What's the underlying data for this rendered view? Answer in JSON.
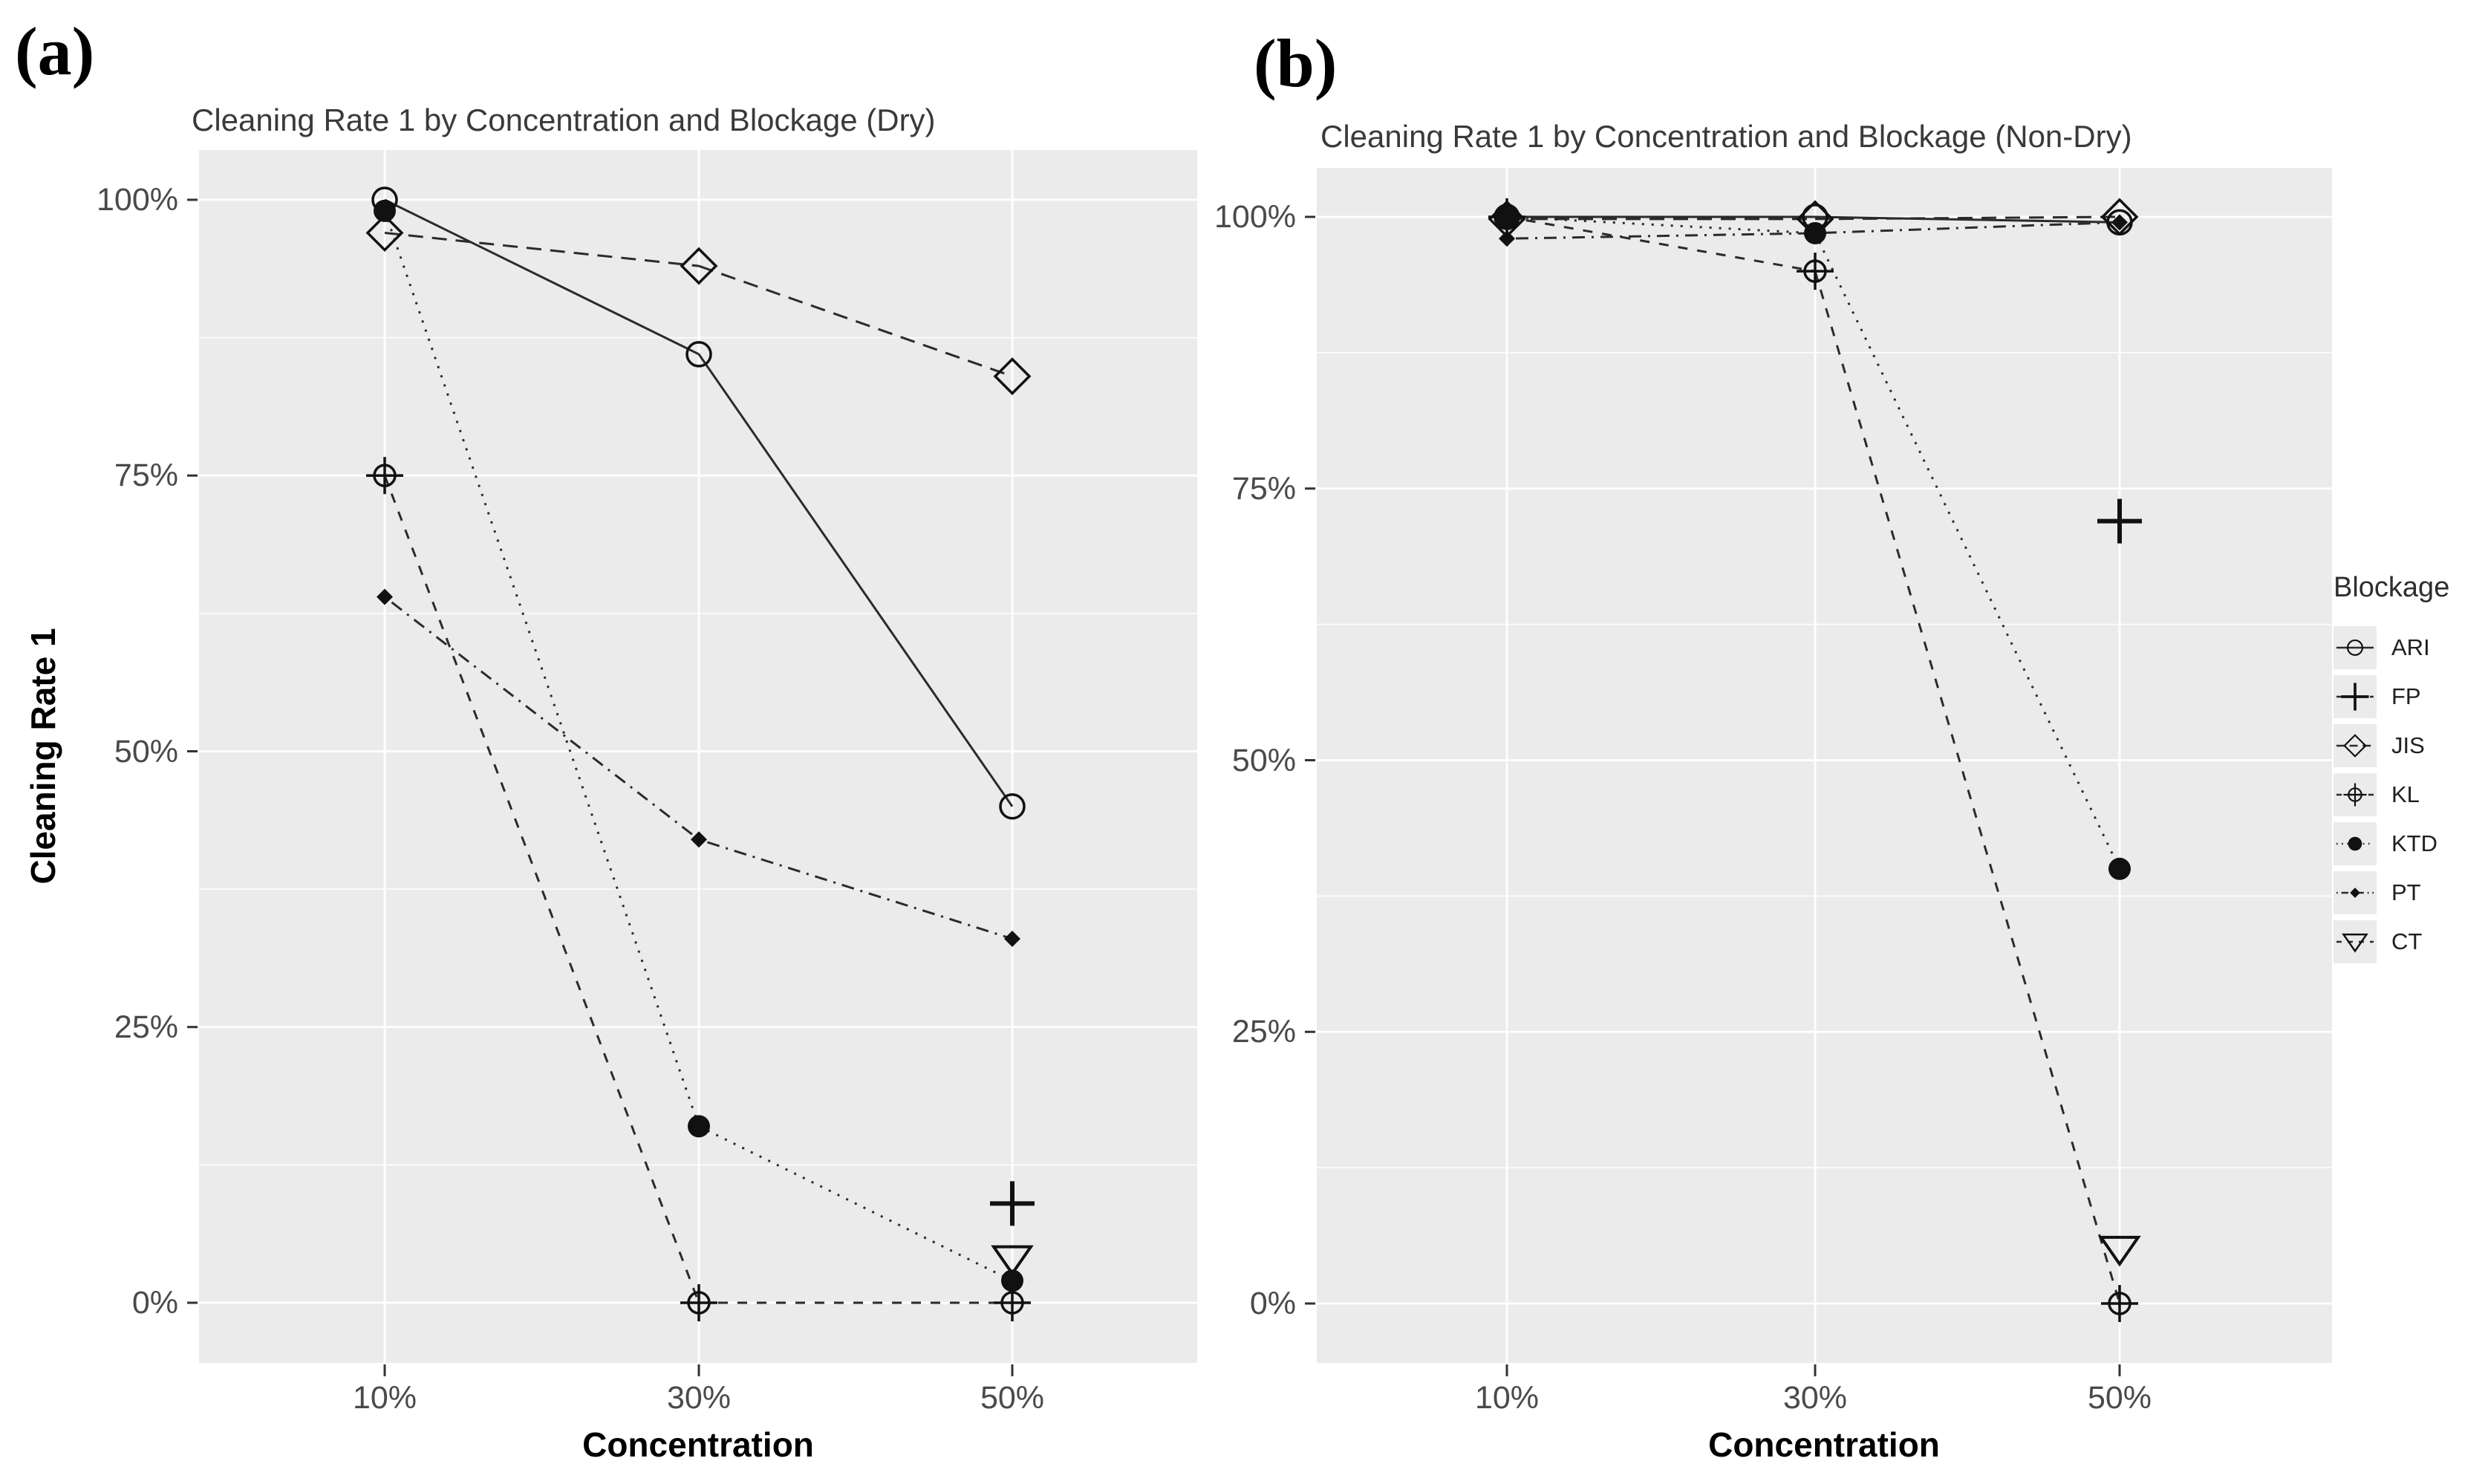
{
  "figure": {
    "panel_a_corner_label": "(a)",
    "panel_b_corner_label": "(b)"
  },
  "colors": {
    "plot_background": "#ebebeb",
    "gridline": "#ffffff",
    "series_line": "#2b2b2b",
    "marker": "#111111",
    "tick_mark": "#333333",
    "tick_label": "#4a4a4a",
    "title_text": "#3a3a3a",
    "legend_key_background": "#ebebeb"
  },
  "legend": {
    "title": "Blockage",
    "entries": [
      "ARI",
      "FP",
      "JIS",
      "KL",
      "KTD",
      "PT",
      "CT"
    ]
  },
  "chart_data": [
    {
      "type": "line",
      "title": "Cleaning Rate 1 by Concentration and Blockage (Dry)",
      "xlabel": "Concentration",
      "ylabel": "Cleaning Rate 1",
      "categories": [
        "10%",
        "30%",
        "50%"
      ],
      "y_ticks": [
        "0%",
        "25%",
        "50%",
        "75%",
        "100%"
      ],
      "y_tick_values": [
        0,
        25,
        50,
        75,
        100
      ],
      "ylim": [
        0,
        100
      ],
      "grid": true,
      "legend_position": "right",
      "series": [
        {
          "name": "ARI",
          "marker": "open-circle",
          "line": "solid",
          "values": [
            100,
            86,
            45
          ]
        },
        {
          "name": "FP",
          "marker": "plus",
          "line": "none",
          "values": [
            null,
            null,
            9
          ]
        },
        {
          "name": "JIS",
          "marker": "open-diamond",
          "line": "dashed-long",
          "values": [
            97,
            94,
            84
          ]
        },
        {
          "name": "KL",
          "marker": "circle-plus",
          "line": "dashed",
          "values": [
            75,
            0,
            0
          ]
        },
        {
          "name": "KTD",
          "marker": "filled-circle",
          "line": "dotted",
          "values": [
            99,
            16,
            2
          ]
        },
        {
          "name": "PT",
          "marker": "filled-diamond",
          "line": "dashdot",
          "values": [
            64,
            42,
            33
          ]
        },
        {
          "name": "CT",
          "marker": "open-triangle-down",
          "line": "none",
          "values": [
            null,
            null,
            4
          ]
        }
      ]
    },
    {
      "type": "line",
      "title": "Cleaning Rate 1 by Concentration and Blockage (Non-Dry)",
      "xlabel": "Concentration",
      "ylabel": "Cleaning Rate 1",
      "categories": [
        "10%",
        "30%",
        "50%"
      ],
      "y_ticks": [
        "0%",
        "25%",
        "50%",
        "75%",
        "100%"
      ],
      "y_tick_values": [
        0,
        25,
        50,
        75,
        100
      ],
      "ylim": [
        0,
        100
      ],
      "grid": true,
      "legend_position": "right",
      "series": [
        {
          "name": "ARI",
          "marker": "open-circle",
          "line": "solid",
          "values": [
            100,
            100,
            99.5
          ]
        },
        {
          "name": "FP",
          "marker": "plus",
          "line": "none",
          "values": [
            null,
            null,
            72
          ]
        },
        {
          "name": "JIS",
          "marker": "open-diamond",
          "line": "dashed-long",
          "values": [
            99.8,
            99.8,
            100
          ]
        },
        {
          "name": "KL",
          "marker": "circle-plus",
          "line": "dashed",
          "values": [
            100,
            95,
            0
          ]
        },
        {
          "name": "KTD",
          "marker": "filled-circle",
          "line": "dotted",
          "values": [
            100,
            98.5,
            40
          ]
        },
        {
          "name": "PT",
          "marker": "filled-diamond",
          "line": "dashdot",
          "values": [
            98,
            98.5,
            99.5
          ]
        },
        {
          "name": "CT",
          "marker": "open-triangle-down",
          "line": "none",
          "values": [
            null,
            null,
            5
          ]
        }
      ]
    }
  ]
}
